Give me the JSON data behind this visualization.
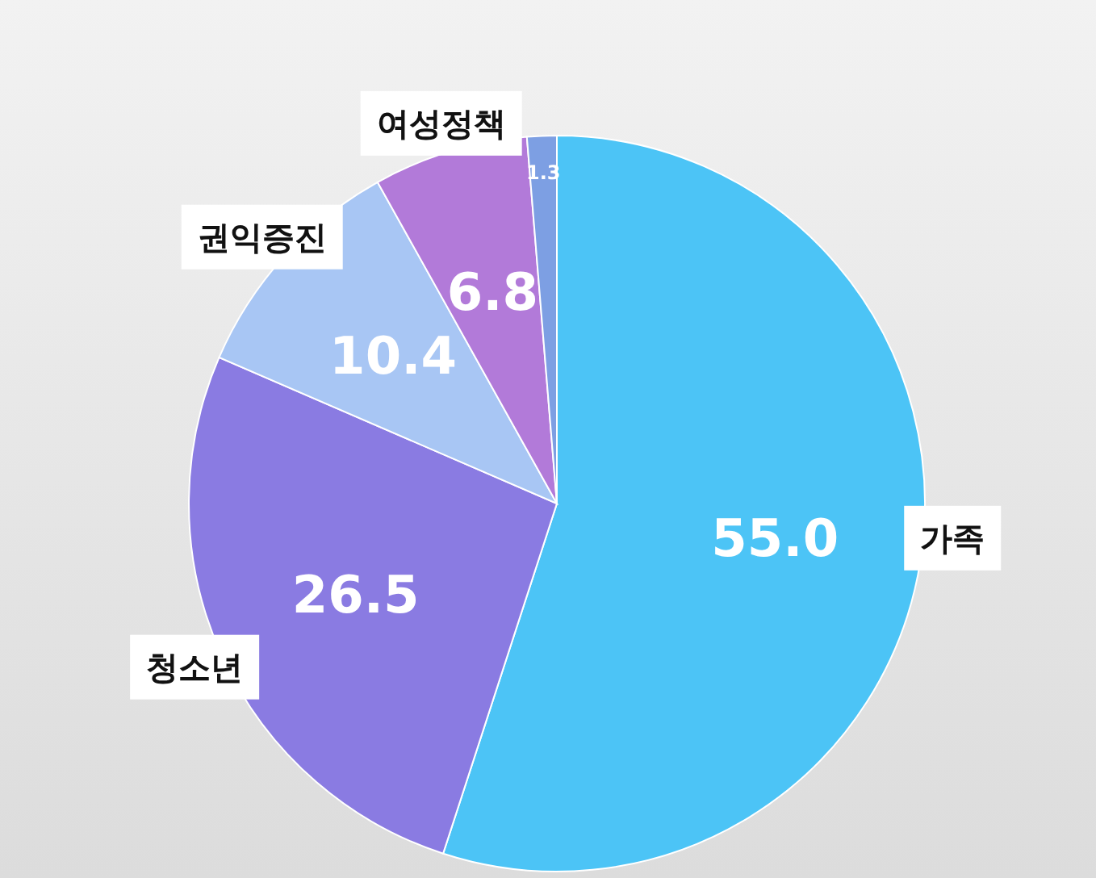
{
  "chart_data": {
    "type": "pie",
    "categories": [
      "가족",
      "청소년",
      "권익증진",
      "여성정책",
      null
    ],
    "values": [
      55.0,
      26.5,
      10.4,
      6.8,
      1.3
    ],
    "value_labels": [
      "55.0",
      "26.5",
      "10.4",
      "6.8",
      "1.3"
    ],
    "colors": [
      "#4cc4f6",
      "#8a7be2",
      "#a8c6f4",
      "#b27ad9",
      "#7d9fe3"
    ]
  }
}
